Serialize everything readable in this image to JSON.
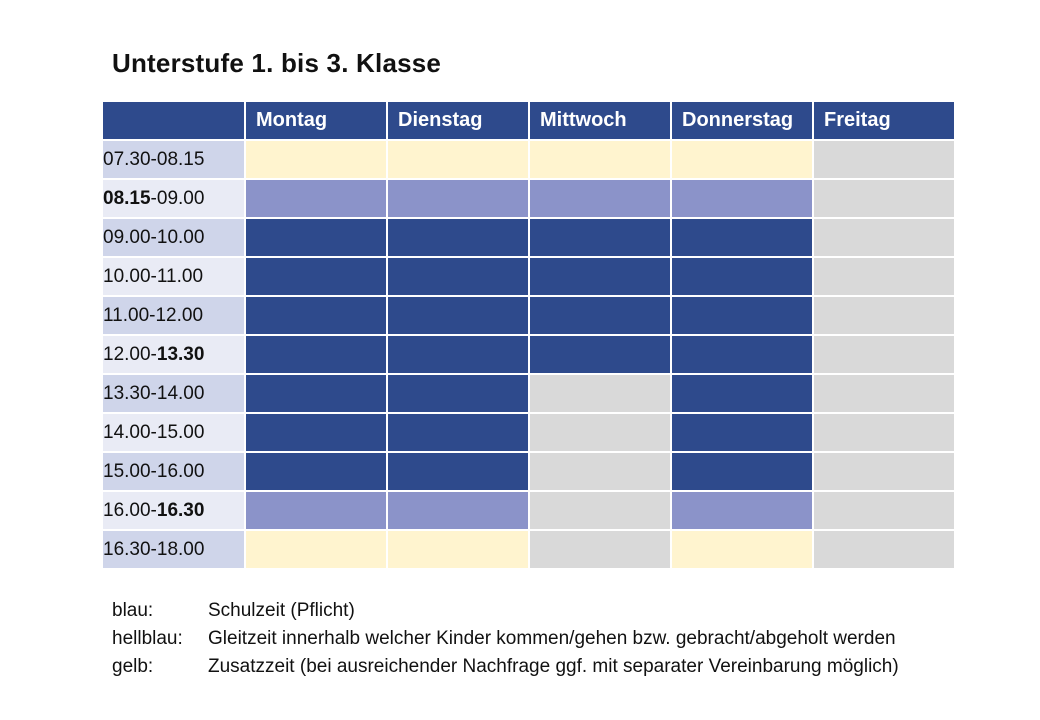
{
  "title": "Unterstufe 1. bis 3. Klasse",
  "days": [
    "Montag",
    "Dienstag",
    "Mittwoch",
    "Donnerstag",
    "Freitag"
  ],
  "colors": {
    "blue": "#2e4a8c",
    "lightblue": "#8b93c9",
    "yellow": "#fff4cf",
    "gray": "#d9d9d9"
  },
  "rows": [
    {
      "start": "07.30",
      "sep": "-",
      "end": "08.15",
      "bold": "",
      "cells": [
        "yellow",
        "yellow",
        "yellow",
        "yellow",
        "gray"
      ]
    },
    {
      "start": "08.15",
      "sep": "-",
      "end": "09.00",
      "bold": "start",
      "cells": [
        "lightblue",
        "lightblue",
        "lightblue",
        "lightblue",
        "gray"
      ]
    },
    {
      "start": "09.00",
      "sep": "-",
      "end": "10.00",
      "bold": "",
      "cells": [
        "blue",
        "blue",
        "blue",
        "blue",
        "gray"
      ]
    },
    {
      "start": "10.00",
      "sep": "-",
      "end": "11.00",
      "bold": "",
      "cells": [
        "blue",
        "blue",
        "blue",
        "blue",
        "gray"
      ]
    },
    {
      "start": "11.00",
      "sep": "-",
      "end": "12.00",
      "bold": "",
      "cells": [
        "blue",
        "blue",
        "blue",
        "blue",
        "gray"
      ]
    },
    {
      "start": "12.00",
      "sep": "-",
      "end": "13.30",
      "bold": "end",
      "cells": [
        "blue",
        "blue",
        "blue",
        "blue",
        "gray"
      ]
    },
    {
      "start": "13.30",
      "sep": "-",
      "end": "14.00",
      "bold": "",
      "cells": [
        "blue",
        "blue",
        "gray",
        "blue",
        "gray"
      ]
    },
    {
      "start": "14.00",
      "sep": "-",
      "end": "15.00",
      "bold": "",
      "cells": [
        "blue",
        "blue",
        "gray",
        "blue",
        "gray"
      ]
    },
    {
      "start": "15.00",
      "sep": "-",
      "end": "16.00",
      "bold": "",
      "cells": [
        "blue",
        "blue",
        "gray",
        "blue",
        "gray"
      ]
    },
    {
      "start": "16.00",
      "sep": "-",
      "end": "16.30",
      "bold": "end",
      "cells": [
        "lightblue",
        "lightblue",
        "gray",
        "lightblue",
        "gray"
      ]
    },
    {
      "start": "16.30",
      "sep": "-",
      "end": "18.00",
      "bold": "",
      "cells": [
        "yellow",
        "yellow",
        "gray",
        "yellow",
        "gray"
      ]
    }
  ],
  "legend": [
    {
      "key": "blau:",
      "text": "Schulzeit (Pflicht)"
    },
    {
      "key": "hellblau:",
      "text": "Gleitzeit innerhalb welcher Kinder kommen/gehen bzw. gebracht/abgeholt werden"
    },
    {
      "key": "gelb:",
      "text": "Zusatzzeit (bei ausreichender Nachfrage ggf. mit separater Vereinbarung möglich)"
    }
  ]
}
